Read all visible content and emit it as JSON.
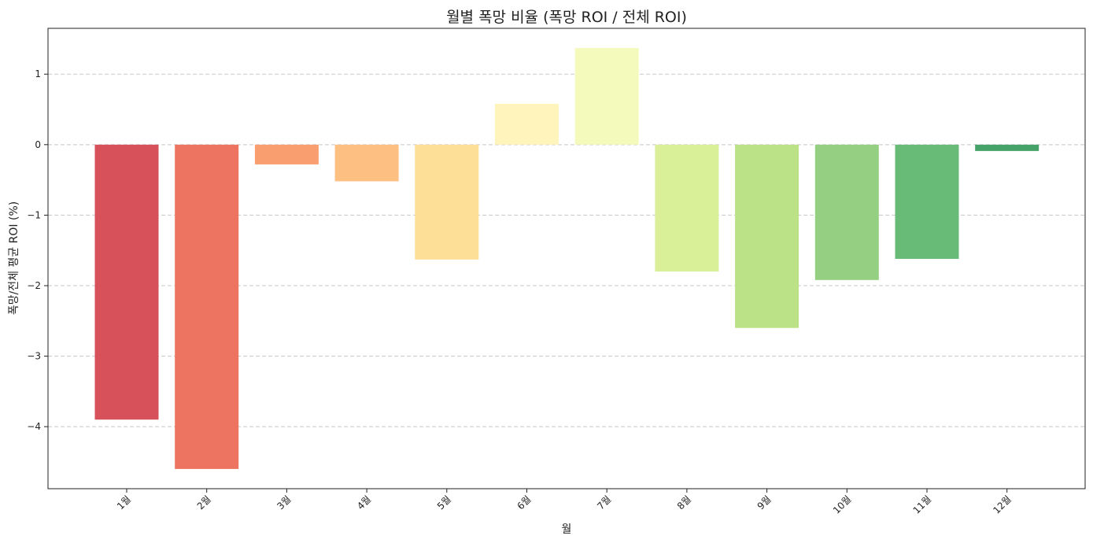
{
  "chart_data": {
    "type": "bar",
    "title": "월별 폭망 비율 (폭망 ROI / 전체 ROI)",
    "xlabel": "월",
    "ylabel": "폭망/전체 평균 ROI (%)",
    "categories": [
      "1월",
      "2월",
      "3월",
      "4월",
      "5월",
      "6월",
      "7월",
      "8월",
      "9월",
      "10월",
      "11월",
      "12월"
    ],
    "values": [
      -3.9,
      -4.6,
      -0.28,
      -0.52,
      -1.63,
      0.58,
      1.37,
      -1.8,
      -2.6,
      -1.92,
      -1.62,
      -0.09
    ],
    "colors": [
      "#d53e4f",
      "#f46d43",
      "#fdae61",
      "#fee08b",
      "#fee08b",
      "#ffffbf",
      "#e6f598",
      "#abdda4",
      "#abdda4",
      "#66c2a5",
      "#3288bd",
      "#3288bd"
    ],
    "bar_colors": [
      "#d6515a",
      "#ec7460",
      "#f89e6f",
      "#fdbf82",
      "#fedf98",
      "#fff4bc",
      "#f4fabb",
      "#d9ef98",
      "#bce287",
      "#95d082",
      "#67bb76",
      "#45a36a"
    ],
    "yticks": [
      1,
      0,
      -1,
      -2,
      -3,
      -4
    ],
    "ytick_labels": [
      "1",
      "0",
      "−1",
      "−2",
      "−3",
      "−4"
    ],
    "ylim": [
      -4.88,
      1.65
    ],
    "grid": "y-dashed",
    "legend": "none"
  }
}
